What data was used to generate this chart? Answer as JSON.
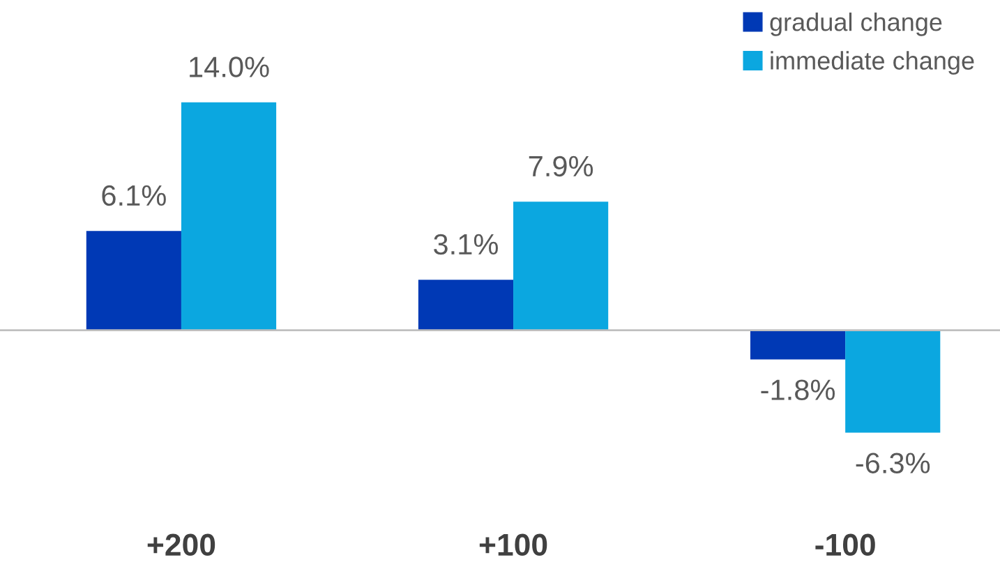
{
  "chart_data": {
    "type": "bar",
    "categories": [
      "+200",
      "+100",
      "-100"
    ],
    "series": [
      {
        "name": "gradual change",
        "color": "#0039b5",
        "values": [
          6.1,
          3.1,
          -1.8
        ],
        "value_labels": [
          "6.1%",
          "3.1%",
          "-1.8%"
        ]
      },
      {
        "name": "immediate change",
        "color": "#0ba7e0",
        "values": [
          14.0,
          7.9,
          -6.3
        ],
        "value_labels": [
          "14.0%",
          "7.9%",
          "-6.3%"
        ]
      }
    ],
    "legend": "top right",
    "grid": false
  }
}
